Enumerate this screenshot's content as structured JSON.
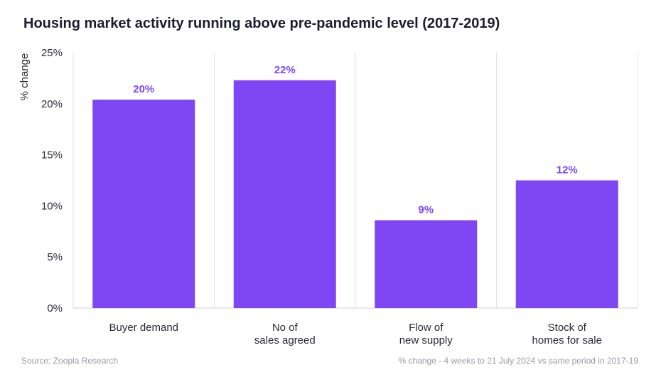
{
  "title": "Housing market activity running above pre-pandemic level (2017-2019)",
  "source": "Source: Zoopla Research",
  "note": "% change - 4 weeks to 21 July 2024 vs same period in 2017-19",
  "chart_data": {
    "type": "bar",
    "categories": [
      [
        "Buyer demand"
      ],
      [
        "No of",
        "sales agreed"
      ],
      [
        "Flow of",
        "new supply"
      ],
      [
        "Stock of",
        "homes for sale"
      ]
    ],
    "values": [
      20.4,
      22.3,
      8.6,
      12.5
    ],
    "data_labels": [
      "20%",
      "22%",
      "9%",
      "12%"
    ],
    "ylabel": "% change",
    "ylim": [
      0,
      25
    ],
    "yticks": [
      0,
      5,
      10,
      15,
      20,
      25
    ],
    "ytick_labels": [
      "0%",
      "5%",
      "10%",
      "15%",
      "20%",
      "25%"
    ],
    "bar_color": "#7f47f4",
    "label_color": "#7f47f4",
    "grid": "vertical separators"
  }
}
